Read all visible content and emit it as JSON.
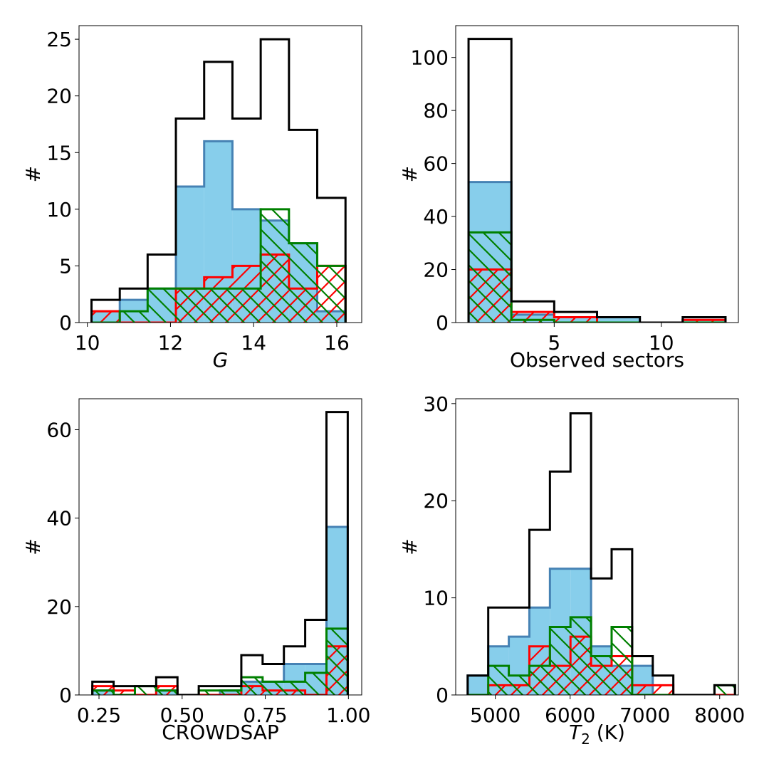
{
  "colors": {
    "black": "#000000",
    "blue_fill": "#87ceeb",
    "blue_edge": "#4682b4",
    "red": "#ff0000",
    "green": "#008000"
  },
  "chart_data": [
    {
      "id": "g",
      "type": "histogram",
      "xlabel": "G",
      "xlabel_italic": true,
      "ylabel": "#",
      "xlim": [
        9.8,
        16.6
      ],
      "ylim": [
        0,
        26.2
      ],
      "xticks": [
        10,
        12,
        14,
        16
      ],
      "yticks": [
        0,
        5,
        10,
        15,
        20,
        25
      ],
      "bin_edges": [
        10.1,
        10.78,
        11.45,
        12.13,
        12.81,
        13.49,
        14.17,
        14.85,
        15.53,
        16.21
      ],
      "series": [
        {
          "name": "all",
          "style": "black-step",
          "values": [
            2,
            3,
            6,
            18,
            23,
            18,
            25,
            17,
            11
          ]
        },
        {
          "name": "blue",
          "style": "blue-filled",
          "values": [
            1,
            2,
            3,
            12,
            16,
            10,
            9,
            7,
            1
          ]
        },
        {
          "name": "red",
          "style": "red-hatch",
          "values": [
            1,
            0,
            0,
            3,
            4,
            5,
            6,
            3,
            5
          ]
        },
        {
          "name": "green",
          "style": "green-hatch",
          "values": [
            0,
            1,
            3,
            3,
            3,
            3,
            10,
            7,
            5
          ]
        }
      ]
    },
    {
      "id": "sectors",
      "type": "histogram",
      "xlabel": "Observed sectors",
      "xlabel_italic": false,
      "ylabel": "#",
      "xlim": [
        0.4,
        13.6
      ],
      "ylim": [
        0,
        112
      ],
      "xticks": [
        5,
        10
      ],
      "yticks": [
        0,
        20,
        40,
        60,
        80,
        100
      ],
      "bin_edges": [
        1,
        3,
        5,
        7,
        9,
        11,
        13
      ],
      "series": [
        {
          "name": "all",
          "style": "black-step",
          "values": [
            107,
            8,
            4,
            2,
            0,
            2
          ]
        },
        {
          "name": "blue",
          "style": "blue-filled",
          "values": [
            53,
            3,
            2,
            2,
            0,
            1
          ]
        },
        {
          "name": "red",
          "style": "red-hatch",
          "values": [
            20,
            4,
            2,
            0,
            0,
            1
          ]
        },
        {
          "name": "green",
          "style": "green-hatch",
          "values": [
            34,
            1,
            0,
            0,
            0,
            0
          ]
        }
      ]
    },
    {
      "id": "crowdsap",
      "type": "histogram",
      "xlabel": "CROWDSAP",
      "xlabel_italic": false,
      "ylabel": "#",
      "xlim": [
        0.19,
        1.04
      ],
      "ylim": [
        0,
        67
      ],
      "xticks": [
        0.25,
        0.5,
        0.75,
        1.0
      ],
      "xtick_labels": [
        "0.25",
        "0.50",
        "0.75",
        "1.00"
      ],
      "yticks": [
        0,
        20,
        40,
        60
      ],
      "bin_edges": [
        0.23,
        0.294,
        0.358,
        0.422,
        0.486,
        0.55,
        0.614,
        0.678,
        0.742,
        0.806,
        0.87,
        0.934,
        0.998
      ],
      "series": [
        {
          "name": "all",
          "style": "black-step",
          "values": [
            3,
            2,
            2,
            4,
            0,
            2,
            2,
            9,
            7,
            11,
            17,
            64
          ]
        },
        {
          "name": "blue",
          "style": "blue-filled",
          "values": [
            1,
            0,
            0,
            1,
            0,
            0,
            1,
            3,
            3,
            7,
            7,
            38
          ]
        },
        {
          "name": "red",
          "style": "red-hatch",
          "values": [
            2,
            1,
            0,
            2,
            0,
            0,
            0,
            2,
            1,
            1,
            0,
            11
          ]
        },
        {
          "name": "green",
          "style": "green-hatch",
          "values": [
            1,
            0,
            2,
            1,
            0,
            1,
            1,
            4,
            3,
            3,
            5,
            15
          ]
        }
      ]
    },
    {
      "id": "t2",
      "type": "histogram",
      "xlabel": "T",
      "xlabel_sub": "2",
      "xlabel_suffix": " (K)",
      "xlabel_italic": true,
      "ylabel": "#",
      "xlim": [
        4470,
        8250
      ],
      "ylim": [
        0,
        30.5
      ],
      "xticks": [
        5000,
        6000,
        7000,
        8000
      ],
      "yticks": [
        0,
        10,
        20,
        30
      ],
      "bin_edges": [
        4630,
        4905,
        5180,
        5455,
        5730,
        6005,
        6280,
        6555,
        6830,
        7105,
        7380,
        7655,
        7930,
        8205
      ],
      "series": [
        {
          "name": "all",
          "style": "black-step",
          "values": [
            2,
            9,
            9,
            17,
            23,
            29,
            12,
            15,
            4,
            2,
            0,
            0,
            1
          ]
        },
        {
          "name": "blue",
          "style": "blue-filled",
          "values": [
            2,
            5,
            6,
            9,
            13,
            13,
            5,
            3,
            3,
            0,
            0,
            0,
            0
          ]
        },
        {
          "name": "red",
          "style": "red-hatch",
          "values": [
            0,
            1,
            1,
            5,
            3,
            6,
            3,
            4,
            1,
            1,
            0,
            0,
            0
          ]
        },
        {
          "name": "green",
          "style": "green-hatch",
          "values": [
            0,
            3,
            2,
            3,
            7,
            8,
            4,
            7,
            0,
            0,
            0,
            0,
            1
          ]
        }
      ]
    }
  ]
}
